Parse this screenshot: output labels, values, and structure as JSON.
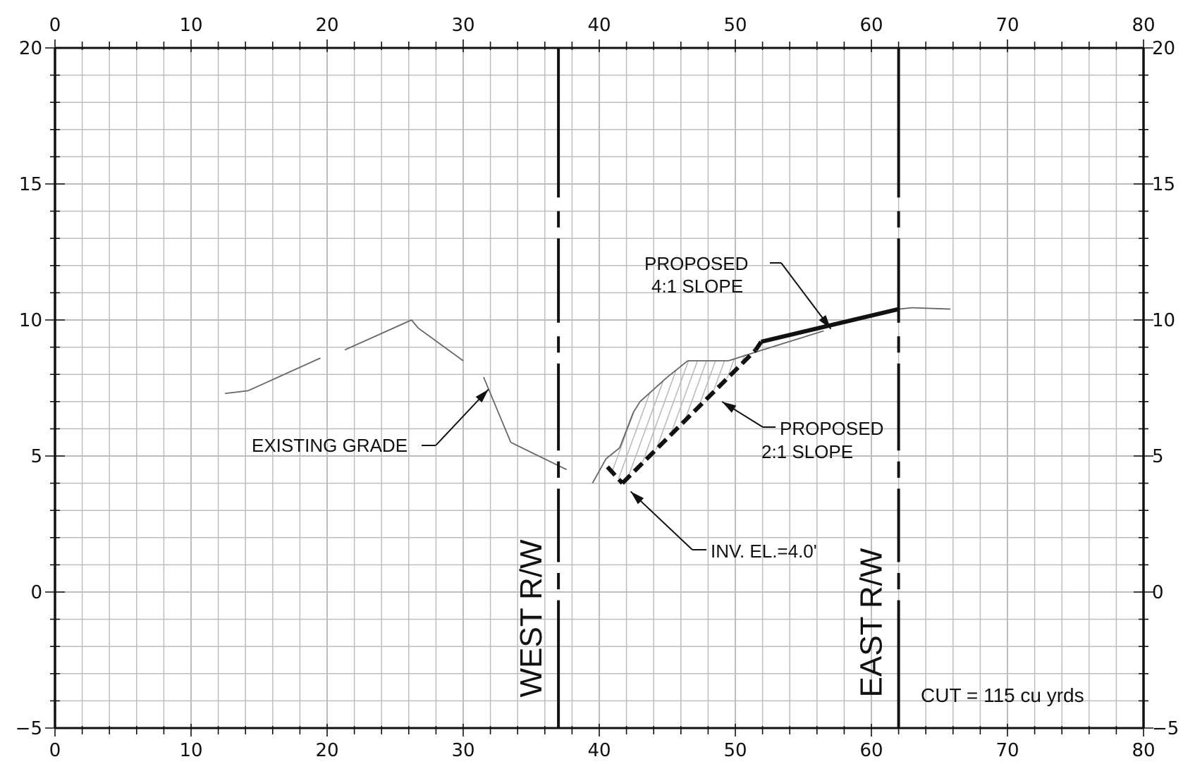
{
  "chart_data": {
    "type": "cross-section",
    "xlim": [
      0,
      80
    ],
    "ylim": [
      -5,
      20
    ],
    "x_ticks": [
      0,
      10,
      20,
      30,
      40,
      50,
      60,
      70,
      80
    ],
    "y_ticks": [
      -5,
      0,
      5,
      10,
      15,
      20
    ],
    "grid": true,
    "existing_grade": [
      [
        12.5,
        7.3
      ],
      [
        14.2,
        7.4
      ],
      [
        19.5,
        8.6
      ],
      [
        21.3,
        8.9
      ],
      [
        26.2,
        10.0
      ],
      [
        26.7,
        9.7
      ],
      [
        30.0,
        8.5
      ],
      [
        31.5,
        7.9
      ],
      [
        33.5,
        5.5
      ],
      [
        37.6,
        4.5
      ],
      [
        39.5,
        4.0
      ],
      [
        40.5,
        4.9
      ],
      [
        41.5,
        5.3
      ],
      [
        42.5,
        6.6
      ],
      [
        43.0,
        7.0
      ],
      [
        45.0,
        7.9
      ],
      [
        46.5,
        8.5
      ],
      [
        49.5,
        8.5
      ],
      [
        52.0,
        8.9
      ],
      [
        56.5,
        9.6
      ]
    ],
    "existing_grade_east": [
      [
        62.0,
        10.4
      ],
      [
        63.0,
        10.45
      ],
      [
        65.8,
        10.4
      ]
    ],
    "proposed_grade": [
      [
        41.7,
        4.0
      ],
      [
        51.9,
        9.2
      ],
      [
        62.0,
        10.4
      ]
    ],
    "proposed_grade_dashed_segments": [
      [
        [
          40.6,
          4.6
        ],
        [
          41.7,
          4.0
        ]
      ],
      [
        [
          41.7,
          4.0
        ],
        [
          51.5,
          8.9
        ]
      ]
    ],
    "cut_hatch_region": [
      [
        40.5,
        4.6
      ],
      [
        41.7,
        4.0
      ],
      [
        51.5,
        8.9
      ],
      [
        49.5,
        8.5
      ],
      [
        46.5,
        8.5
      ],
      [
        45.0,
        7.9
      ],
      [
        43.0,
        7.0
      ],
      [
        42.5,
        6.6
      ],
      [
        41.5,
        5.3
      ]
    ],
    "right_of_way": [
      {
        "name": "WEST R/W",
        "x": 37.0
      },
      {
        "name": "EAST R/W",
        "x": 62.0
      }
    ],
    "annotations": [
      {
        "lines": [
          "PROPOSED",
          "4:1  SLOPE"
        ],
        "target": [
          56.5,
          9.75
        ]
      },
      {
        "lines": [
          "PROPOSED",
          "2:1  SLOPE"
        ],
        "target": [
          48.5,
          7.1
        ]
      },
      {
        "lines": [
          "EXISTING  GRADE"
        ],
        "target": [
          31.7,
          7.5
        ]
      },
      {
        "lines": [
          "INV.  EL.=4.0'"
        ],
        "target": [
          42.2,
          3.8
        ]
      }
    ],
    "cut_summary": "CUT  =  115  cu  yrds"
  },
  "colors": {
    "grid": "#bdbdbd",
    "ink": "#111111",
    "existing": "#666666",
    "hatch": "#b8b8b8"
  }
}
